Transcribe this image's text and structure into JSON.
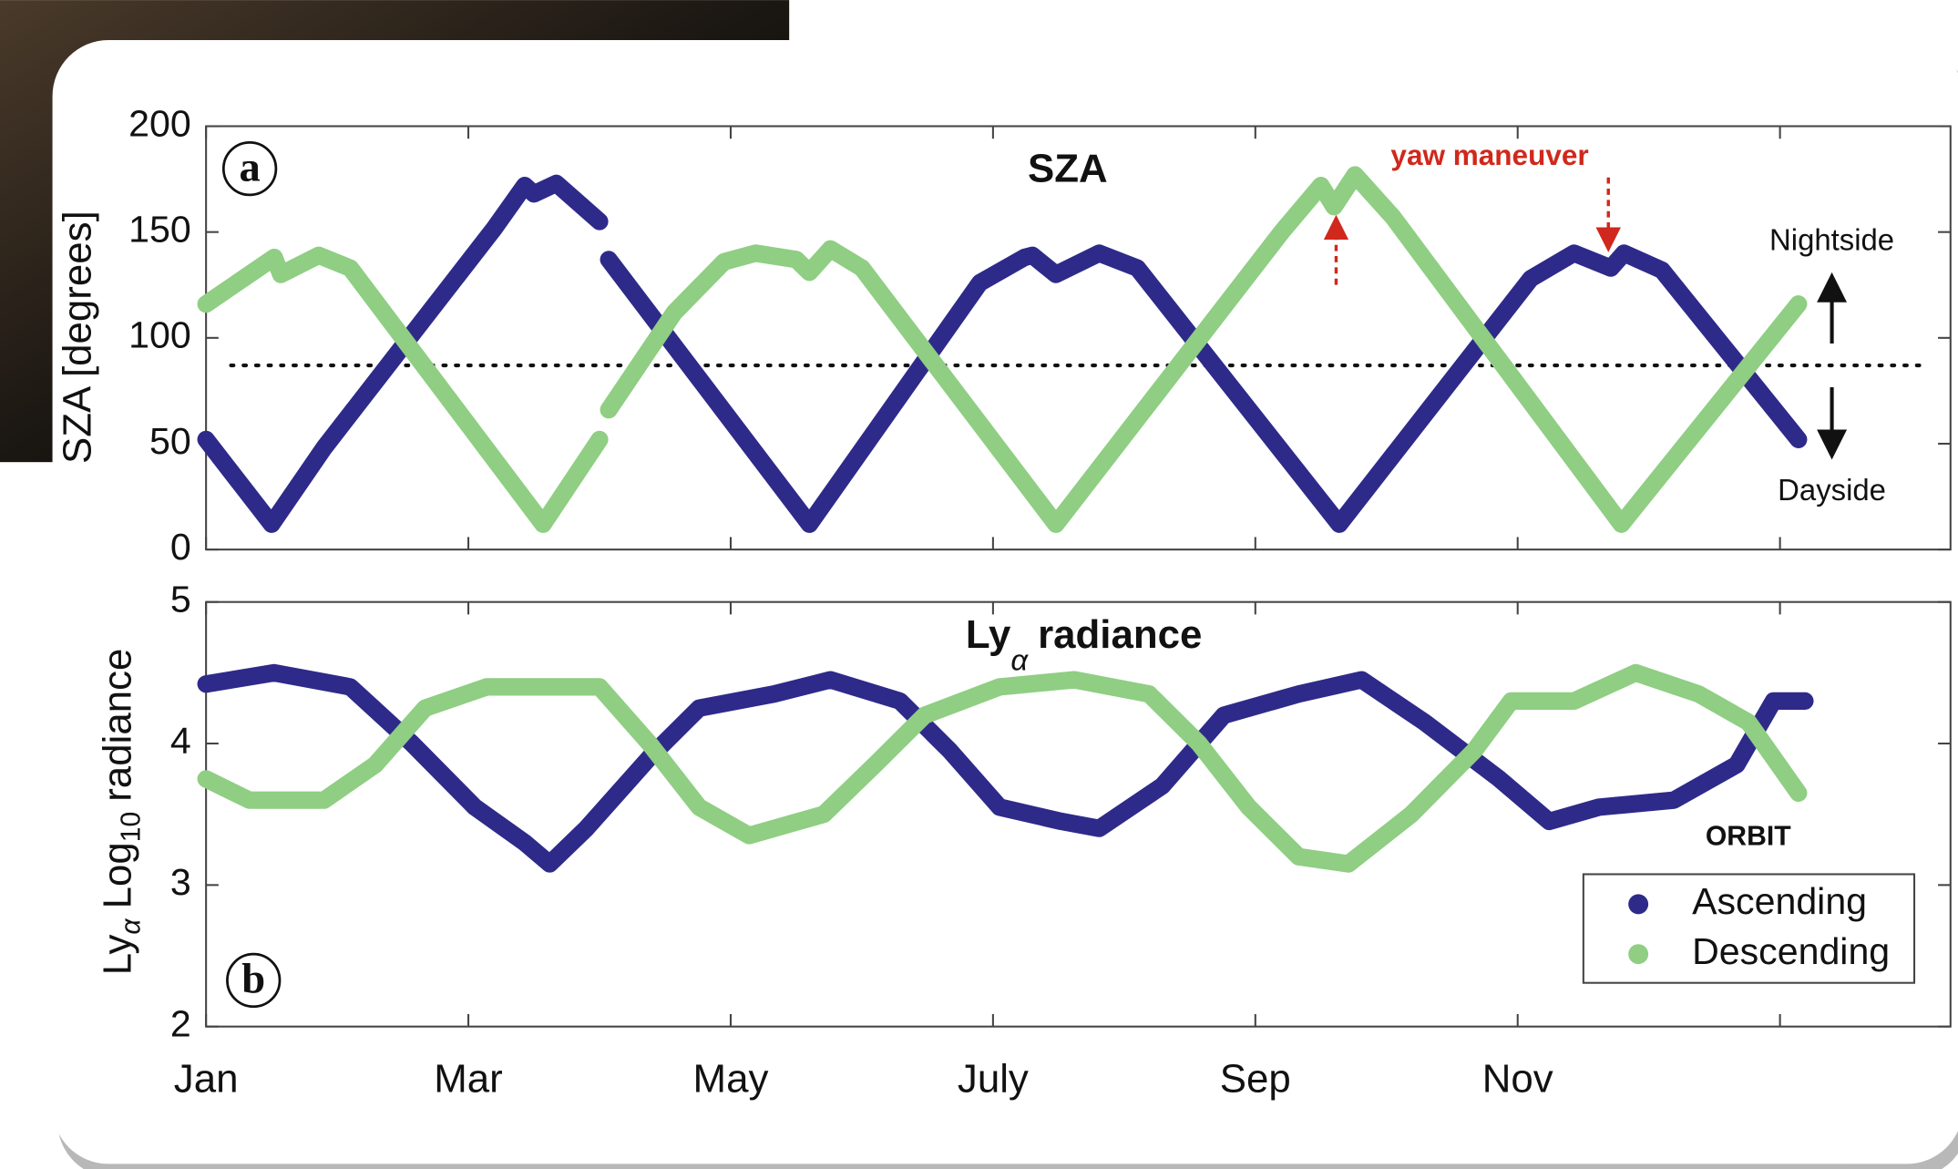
{
  "chart_data": [
    {
      "type": "scatter",
      "title": "SZA",
      "panel_label": "a",
      "ylabel": "SZA [degrees]",
      "annotation": "yaw maneuver",
      "side_labels": [
        "Nightside",
        "Dayside"
      ],
      "xlim": [
        1,
        14.3
      ],
      "xticks": [
        1,
        3,
        5,
        7,
        9,
        11,
        13
      ],
      "ylim": [
        0,
        200
      ],
      "yticks": [
        0,
        50,
        100,
        150,
        200
      ],
      "hline": 87,
      "series": [
        {
          "name": "Ascending",
          "color": "#2e2a8a",
          "x": [
            1.0,
            1.5,
            1.9,
            3.2,
            3.43,
            3.5,
            3.67,
            4.0,
            4.03,
            4.07,
            5.6,
            6.9,
            7.24,
            7.3,
            7.48,
            7.81,
            8.1,
            9.64,
            11.1,
            11.43,
            11.71,
            11.81,
            12.1,
            13.14
          ],
          "values": [
            52,
            12,
            48,
            152,
            172,
            168,
            173,
            155,
            null,
            137,
            12,
            126,
            138,
            139,
            130,
            140,
            133,
            12,
            128,
            140,
            133,
            140,
            132,
            52
          ]
        },
        {
          "name": "Descending",
          "color": "#8fce83",
          "x": [
            1.0,
            1.52,
            1.57,
            1.86,
            2.1,
            3.57,
            4.0,
            4.03,
            4.07,
            4.57,
            4.95,
            5.19,
            5.5,
            5.6,
            5.76,
            6.0,
            7.48,
            9.2,
            9.5,
            9.6,
            9.76,
            10.05,
            11.79,
            13.14
          ],
          "values": [
            116,
            138,
            130,
            139,
            133,
            12,
            52,
            null,
            66,
            112,
            136,
            140,
            137,
            131,
            142,
            133,
            12,
            150,
            172,
            162,
            177,
            157,
            12,
            116
          ]
        }
      ]
    },
    {
      "type": "scatter",
      "title_parts": [
        "Ly",
        "α",
        "radiance"
      ],
      "panel_label": "b",
      "ylabel_parts": [
        "Ly",
        "α",
        "Log",
        "10",
        "radiance"
      ],
      "annotation": "ORBIT",
      "xlim": [
        1,
        14.3
      ],
      "xticks": [
        {
          "value": 1,
          "label": "Jan"
        },
        {
          "value": 3,
          "label": "Mar"
        },
        {
          "value": 5,
          "label": "May"
        },
        {
          "value": 7,
          "label": "July"
        },
        {
          "value": 9,
          "label": "Sep"
        },
        {
          "value": 11,
          "label": "Nov"
        },
        13
      ],
      "ylim": [
        2,
        5
      ],
      "yticks": [
        2,
        3,
        4,
        5
      ],
      "legend": "lower right",
      "series": [
        {
          "name": "Ascending",
          "color": "#2e2a8a",
          "x": [
            1.0,
            1.52,
            2.1,
            2.57,
            3.05,
            3.43,
            3.62,
            3.9,
            4.38,
            4.76,
            5.33,
            5.76,
            6.29,
            6.67,
            7.05,
            7.52,
            7.81,
            8.29,
            8.76,
            9.33,
            9.81,
            10.29,
            10.86,
            11.24,
            11.62,
            12.19,
            12.67,
            12.95,
            13.19
          ],
          "values": [
            4.42,
            4.5,
            4.4,
            4.0,
            3.55,
            3.3,
            3.15,
            3.4,
            3.9,
            4.25,
            4.35,
            4.45,
            4.3,
            3.95,
            3.55,
            3.45,
            3.4,
            3.7,
            4.2,
            4.35,
            4.45,
            4.15,
            3.75,
            3.45,
            3.55,
            3.6,
            3.85,
            4.3,
            4.3
          ]
        },
        {
          "name": "Descending",
          "color": "#8fce83",
          "x": [
            1.0,
            1.33,
            1.9,
            2.29,
            2.67,
            3.14,
            4.0,
            4.38,
            4.76,
            5.14,
            5.71,
            6.1,
            6.48,
            7.05,
            7.62,
            8.19,
            8.57,
            8.95,
            9.33,
            9.71,
            10.19,
            10.67,
            10.95,
            11.43,
            11.9,
            12.38,
            12.76,
            13.14
          ],
          "values": [
            3.75,
            3.6,
            3.6,
            3.85,
            4.25,
            4.4,
            4.4,
            4.0,
            3.55,
            3.35,
            3.5,
            3.85,
            4.2,
            4.4,
            4.45,
            4.35,
            4.0,
            3.55,
            3.2,
            3.15,
            3.5,
            3.95,
            4.3,
            4.3,
            4.5,
            4.35,
            4.15,
            3.65
          ]
        }
      ]
    }
  ]
}
